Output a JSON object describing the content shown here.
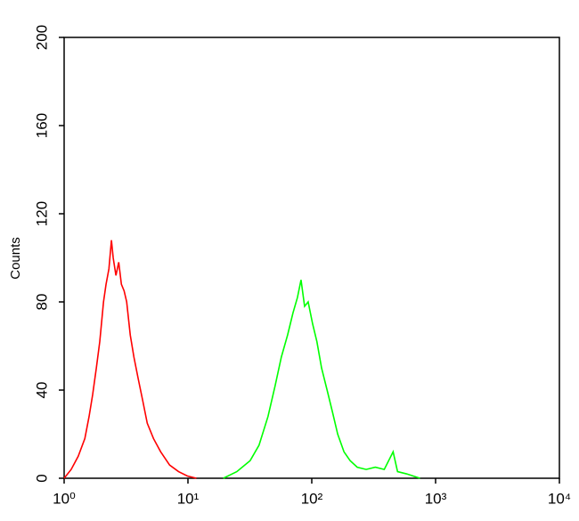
{
  "chart_data": {
    "type": "line",
    "y_label": "Counts",
    "xscale": "log",
    "xlim": [
      1,
      10000
    ],
    "xticks": [
      {
        "value": 1,
        "label": "10⁰"
      },
      {
        "value": 10,
        "label": "10¹"
      },
      {
        "value": 100,
        "label": "10²"
      },
      {
        "value": 1000,
        "label": "10³"
      },
      {
        "value": 10000,
        "label": "10⁴"
      }
    ],
    "ylim": [
      0,
      200
    ],
    "yticks": [
      0,
      40,
      80,
      120,
      160,
      200
    ],
    "series": [
      {
        "color": "#ff0000",
        "x": [
          1,
          1.14,
          1.3,
          1.47,
          1.59,
          1.7,
          1.82,
          1.94,
          2.08,
          2.18,
          2.3,
          2.41,
          2.49,
          2.62,
          2.76,
          2.9,
          3.05,
          3.2,
          3.42,
          3.66,
          3.97,
          4.32,
          4.69,
          5.27,
          6.02,
          7.11,
          8.4,
          9.9,
          11.7
        ],
        "values": [
          0,
          4,
          10,
          18,
          28,
          38,
          50,
          62,
          80,
          88,
          95,
          108,
          100,
          92,
          98,
          88,
          85,
          80,
          65,
          55,
          45,
          35,
          25,
          18,
          12,
          6,
          3,
          1,
          0
        ]
      },
      {
        "color": "#00ff00",
        "x": [
          19.3,
          24.8,
          31.8,
          37.5,
          44.3,
          50.6,
          56.8,
          63.8,
          70.5,
          76.6,
          81.9,
          87.5,
          93.5,
          101.6,
          110,
          120,
          133,
          147,
          162,
          182,
          204,
          233,
          275,
          326,
          385,
          454,
          493,
          582,
          748
        ],
        "values": [
          0,
          3,
          8,
          15,
          28,
          42,
          55,
          65,
          75,
          82,
          90,
          78,
          80,
          70,
          62,
          50,
          40,
          30,
          20,
          12,
          8,
          5,
          4,
          5,
          4,
          12,
          3,
          2,
          0
        ]
      }
    ]
  }
}
